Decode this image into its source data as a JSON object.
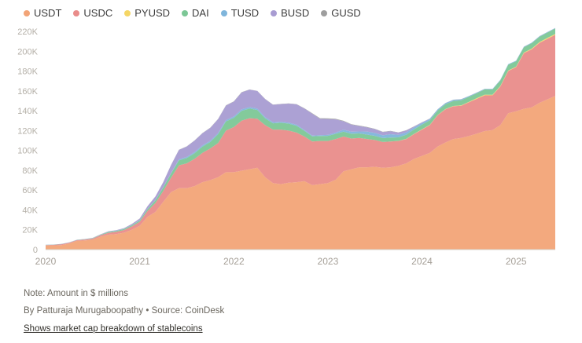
{
  "chart_data": {
    "type": "area",
    "stacked": true,
    "unit_note": "Note: Amount in $ millions",
    "byline": "By Patturaja Murugaboopathy  • Source: CoinDesk",
    "caption": "Shows market cap breakdown of stablecoins",
    "ylim": [
      0,
      220
    ],
    "ytick_step": 20,
    "ytick_suffix": "K",
    "grid": false,
    "legend_position": "top-left",
    "xlabels": [
      "2020",
      "2021",
      "2022",
      "2023",
      "2024",
      "2025"
    ],
    "x": [
      "2020-01",
      "2020-02",
      "2020-03",
      "2020-04",
      "2020-05",
      "2020-06",
      "2020-07",
      "2020-08",
      "2020-09",
      "2020-10",
      "2020-11",
      "2020-12",
      "2021-01",
      "2021-02",
      "2021-03",
      "2021-04",
      "2021-05",
      "2021-06",
      "2021-07",
      "2021-08",
      "2021-09",
      "2021-10",
      "2021-11",
      "2021-12",
      "2022-01",
      "2022-02",
      "2022-03",
      "2022-04",
      "2022-05",
      "2022-06",
      "2022-07",
      "2022-08",
      "2022-09",
      "2022-10",
      "2022-11",
      "2022-12",
      "2023-01",
      "2023-02",
      "2023-03",
      "2023-04",
      "2023-05",
      "2023-06",
      "2023-07",
      "2023-08",
      "2023-09",
      "2023-10",
      "2023-11",
      "2023-12",
      "2024-01",
      "2024-02",
      "2024-03",
      "2024-04",
      "2024-05",
      "2024-06",
      "2024-07",
      "2024-08",
      "2024-09",
      "2024-10",
      "2024-11",
      "2024-12",
      "2025-01",
      "2025-02",
      "2025-03",
      "2025-04",
      "2025-05",
      "2025-06"
    ],
    "series": [
      {
        "name": "USDT",
        "color": "#F2A477",
        "values": [
          4.1,
          4.3,
          4.6,
          6.2,
          8.8,
          9.2,
          10,
          13,
          15,
          15.7,
          17,
          20,
          24,
          33,
          38,
          48,
          58,
          62,
          62,
          64,
          68,
          70,
          73,
          78,
          78,
          79.5,
          81,
          82.5,
          73,
          67,
          66,
          67.5,
          68,
          69,
          65,
          66,
          67,
          70.5,
          79,
          81,
          83,
          83,
          83.5,
          82.5,
          83,
          84.5,
          87,
          91.5,
          94.5,
          97.5,
          104,
          108,
          111.5,
          112.5,
          114.5,
          117,
          119.5,
          120.5,
          125.5,
          137.5,
          139.5,
          142,
          143.5,
          148,
          151.5,
          155
        ]
      },
      {
        "name": "USDC",
        "color": "#E98C8A",
        "values": [
          0.5,
          0.5,
          0.7,
          0.7,
          0.7,
          0.9,
          1.1,
          1.4,
          1.9,
          2.2,
          2.7,
          3.4,
          4,
          6,
          9,
          11,
          14.5,
          23,
          25,
          27.5,
          29.5,
          32,
          34.5,
          42,
          45.5,
          50.5,
          51.5,
          49.5,
          52.5,
          54,
          55,
          52.5,
          50,
          45,
          44,
          43.5,
          42.5,
          41,
          35,
          31,
          29.5,
          28.5,
          27,
          26,
          26,
          25,
          24.5,
          25,
          26.5,
          28,
          31.5,
          33.5,
          33,
          32.5,
          34,
          35,
          36,
          35,
          39,
          42.5,
          44.5,
          56,
          58.5,
          60.5,
          61,
          61.5
        ]
      },
      {
        "name": "PYUSD",
        "color": "#F5D665",
        "values": [
          0,
          0,
          0,
          0,
          0,
          0,
          0,
          0,
          0,
          0,
          0,
          0,
          0,
          0,
          0,
          0,
          0,
          0,
          0,
          0,
          0,
          0,
          0,
          0,
          0,
          0,
          0,
          0,
          0,
          0,
          0,
          0,
          0,
          0,
          0,
          0,
          0,
          0,
          0,
          0,
          0,
          0,
          0,
          0.03,
          0.05,
          0.1,
          0.16,
          0.2,
          0.25,
          0.3,
          0.2,
          0.2,
          0.3,
          0.4,
          0.5,
          0.7,
          0.7,
          0.6,
          0.5,
          0.5,
          0.5,
          0.6,
          0.7,
          0.8,
          0.9,
          1
        ]
      },
      {
        "name": "DAI",
        "color": "#7CC796",
        "values": [
          0.1,
          0.1,
          0.1,
          0.1,
          0.15,
          0.2,
          0.3,
          0.45,
          0.9,
          0.9,
          1,
          1.1,
          1.3,
          1.8,
          2.6,
          3.5,
          4.3,
          5,
          5.3,
          5.7,
          6.3,
          6.5,
          8.8,
          9.3,
          9.3,
          9.9,
          9.7,
          8.8,
          6.8,
          6.3,
          6.9,
          7,
          6.9,
          5.8,
          5.2,
          5.1,
          5.2,
          5.2,
          4.9,
          4.8,
          4.6,
          4.4,
          4.2,
          3.9,
          3.9,
          3.6,
          4.2,
          4.5,
          4.7,
          4.6,
          4.5,
          4.9,
          5.1,
          5.2,
          5.1,
          5,
          5.3,
          5.3,
          5.6,
          5.9,
          5.4,
          5.4,
          5.4,
          5.4,
          5.4,
          5.4
        ]
      },
      {
        "name": "TUSD",
        "color": "#7FB5DB",
        "values": [
          0.13,
          0.13,
          0.13,
          0.13,
          0.14,
          0.14,
          0.15,
          0.15,
          0.2,
          0.25,
          0.27,
          0.28,
          0.3,
          0.35,
          0.35,
          0.35,
          0.4,
          1,
          1.1,
          1.2,
          1.3,
          1.2,
          1.2,
          1.3,
          1.4,
          1.4,
          1.4,
          1.3,
          1.2,
          1.2,
          1,
          1,
          1,
          0.8,
          0.75,
          0.75,
          0.9,
          1.3,
          2,
          2.1,
          2,
          3.1,
          2.9,
          2.8,
          3.4,
          2.6,
          2.4,
          2,
          1.7,
          1.3,
          1.1,
          1.1,
          1.1,
          0.9,
          0.7,
          0.6,
          0.5,
          0.5,
          0.5,
          0.5,
          0.5,
          0.5,
          0.5,
          0.5,
          0.5,
          0.5
        ]
      },
      {
        "name": "BUSD",
        "color": "#A89CD2",
        "values": [
          0.02,
          0.02,
          0.03,
          0.05,
          0.1,
          0.15,
          0.2,
          0.3,
          0.4,
          0.5,
          0.6,
          1,
          1.6,
          2.6,
          3.6,
          5,
          8,
          9.5,
          10.5,
          11.5,
          12.2,
          13,
          14,
          14.6,
          15,
          17.2,
          17.6,
          17.8,
          18.2,
          17.5,
          17.8,
          19.2,
          20.6,
          21.6,
          22,
          16.5,
          16.1,
          13.3,
          8.5,
          7.1,
          5.5,
          4.3,
          3.9,
          3.3,
          3.1,
          2.2,
          1.9,
          1,
          0.6,
          0.3,
          0.15,
          0.1,
          0.08,
          0.07,
          0.07,
          0.07,
          0.06,
          0.06,
          0.06,
          0.06,
          0.06,
          0.06,
          0.06,
          0.06,
          0.06,
          0.06
        ]
      },
      {
        "name": "GUSD",
        "color": "#9E9E9E",
        "values": [
          0.1,
          0.1,
          0.1,
          0.1,
          0.1,
          0.1,
          0.1,
          0.1,
          0.1,
          0.1,
          0.1,
          0.1,
          0.12,
          0.12,
          0.12,
          0.13,
          0.15,
          0.17,
          0.2,
          0.2,
          0.2,
          0.25,
          0.3,
          0.3,
          0.3,
          0.25,
          0.22,
          0.22,
          0.22,
          0.22,
          0.2,
          0.2,
          0.2,
          0.3,
          0.5,
          0.6,
          0.6,
          0.55,
          0.5,
          0.45,
          0.4,
          0.35,
          0.3,
          0.25,
          0.22,
          0.2,
          0.18,
          0.16,
          0.15,
          0.14,
          0.13,
          0.12,
          0.11,
          0.1,
          0.1,
          0.09,
          0.08,
          0.07,
          0.07,
          0.06,
          0.06,
          0.05,
          0.05,
          0.05,
          0.05,
          0.05
        ]
      }
    ],
    "colors": {
      "axis_label": "#b4afa7",
      "x_label": "#a59f97",
      "baseline": "#d6d2cb",
      "legend_text": "#3c3c3c"
    }
  }
}
